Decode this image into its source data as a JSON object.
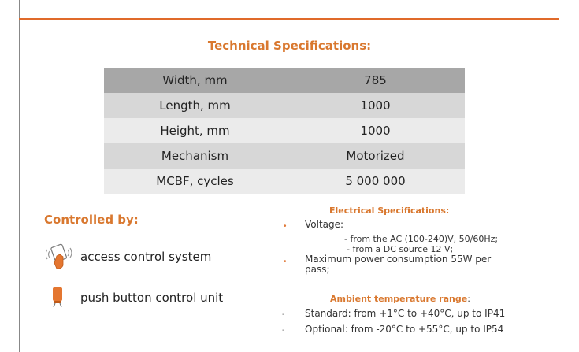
{
  "title": "Technical Specifications:",
  "specs": [
    {
      "label": "Width, mm",
      "value": "785"
    },
    {
      "label": "Length, mm",
      "value": "1000"
    },
    {
      "label": "Height, mm",
      "value": "1000"
    },
    {
      "label": "Mechanism",
      "value": "Motorized"
    },
    {
      "label": "MCBF, cycles",
      "value": "5 000 000"
    }
  ],
  "controlled": {
    "title": "Controlled by:",
    "items": [
      {
        "label": "access control system",
        "icon": "card-reader-icon"
      },
      {
        "label": "push button control unit",
        "icon": "push-button-icon"
      }
    ]
  },
  "electrical": {
    "title": "Electrical Specifications:",
    "voltage_label": "Voltage:",
    "ac": "- from the AC (100-240)V, 50/60Hz;",
    "dc": "- from a DC source 12 V;",
    "power_line1": "Maximum power consumption 55W per",
    "power_line2": "pass;"
  },
  "ambient": {
    "title": "Ambient temperature range",
    "title_suffix": ":",
    "standard": "Standard: from +1°C to +40°C, up to IP41",
    "optional": "Optional: from -20°C to +55°C, up to IP54"
  },
  "colors": {
    "accent": "#d9782f",
    "rule": "#e06a2a",
    "header_row": "#a7a7a7"
  }
}
